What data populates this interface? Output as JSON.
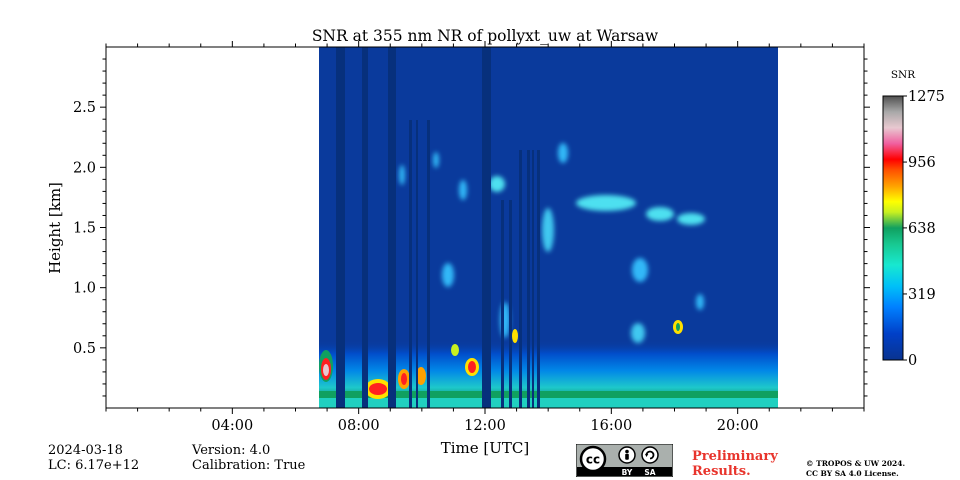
{
  "chart_data": {
    "type": "heatmap",
    "title": "SNR at 355 nm NR of pollyxt_uw at Warsaw",
    "xlabel": "Time [UTC]",
    "ylabel": "Height [km]",
    "xlim": [
      0,
      24
    ],
    "ylim": [
      0,
      3.0
    ],
    "xticks": [
      4,
      8,
      12,
      16,
      20
    ],
    "xtick_labels": [
      "04:00",
      "08:00",
      "12:00",
      "16:00",
      "20:00"
    ],
    "yticks": [
      0.5,
      1.0,
      1.5,
      2.0,
      2.5
    ],
    "ytick_labels": [
      "0.5",
      "1.0",
      "1.5",
      "2.0",
      "2.5"
    ],
    "data_time_range_hours": [
      6.7,
      21.2
    ],
    "colorbar": {
      "label": "SNR",
      "min": 0,
      "max": 1275,
      "ticks": [
        0,
        319,
        638,
        956,
        1275
      ],
      "tick_labels": [
        "0",
        "319",
        "638",
        "956",
        "1275"
      ],
      "colormap": "chiljet"
    },
    "features": [
      {
        "desc": "strong near-surface layer",
        "t0": 6.7,
        "t1": 21.2,
        "h": 0.12,
        "snr": 550
      },
      {
        "desc": "boundary layer low signal",
        "t0": 6.7,
        "t1": 21.2,
        "h": 0.3,
        "snr": 250
      },
      {
        "desc": "cloud",
        "t": 6.9,
        "h": 0.33,
        "snr": 1050
      },
      {
        "desc": "cloud",
        "t": 8.6,
        "h": 0.15,
        "snr": 1000
      },
      {
        "desc": "cloud",
        "t": 9.5,
        "h": 0.25,
        "snr": 850
      },
      {
        "desc": "cloud",
        "t": 10.0,
        "h": 0.26,
        "snr": 800
      },
      {
        "desc": "cloud",
        "t": 11.6,
        "h": 0.33,
        "snr": 900
      },
      {
        "desc": "cloud",
        "t": 12.1,
        "h": 1.85,
        "snr": 480
      },
      {
        "desc": "cloud",
        "t": 18.1,
        "h": 0.67,
        "snr": 750
      },
      {
        "desc": "elevated layer",
        "t0": 15.2,
        "t1": 16.8,
        "h": 1.72,
        "snr": 420
      },
      {
        "desc": "elevated layer",
        "t0": 17.2,
        "t1": 18.9,
        "h": 1.6,
        "snr": 400
      }
    ]
  },
  "info": {
    "date": "2024-03-18",
    "lc": "LC: 6.17e+12",
    "version": "Version: 4.0",
    "calibration": "Calibration: True"
  },
  "license": {
    "badge_cc": "cc",
    "badge_by": "BY",
    "badge_sa": "SA",
    "preliminary_line1": "Preliminary",
    "preliminary_line2": "Results.",
    "copyright_line1": "© TROPOS & UW 2024.",
    "copyright_line2": "CC BY SA 4.0 License."
  },
  "colors": {
    "background_no_data": "#ffffff",
    "low_snr": "#0a3a9c",
    "preliminary_text": "#e8342c"
  }
}
